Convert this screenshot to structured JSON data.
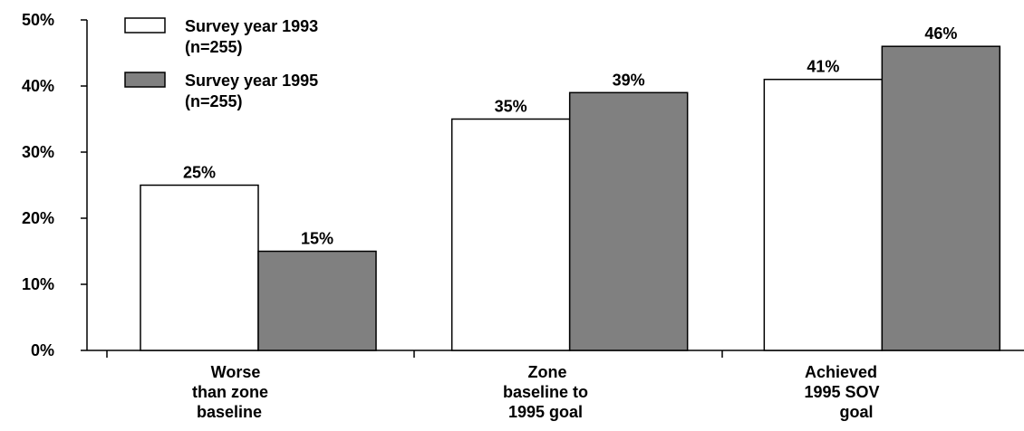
{
  "chart_data": {
    "type": "bar",
    "title": "",
    "xlabel": "",
    "ylabel": "",
    "ylim": [
      0,
      50
    ],
    "yticks": [
      0,
      10,
      20,
      30,
      40,
      50
    ],
    "ytick_labels": [
      "0%",
      "10%",
      "20%",
      "30%",
      "40%",
      "50%"
    ],
    "grid": false,
    "legend_position": "top-left",
    "categories": [
      [
        "Worse",
        "than zone",
        "baseline"
      ],
      [
        "Zone",
        "baseline to",
        "1995 goal"
      ],
      [
        "Achieved",
        "1995 SOV",
        "goal"
      ]
    ],
    "series": [
      {
        "name": "Survey year 1993",
        "legend_lines": [
          "Survey year 1993",
          "(n=255)"
        ],
        "color": "#ffffff",
        "values": [
          25,
          35,
          41
        ],
        "labels": [
          "25%",
          "35%",
          "41%"
        ]
      },
      {
        "name": "Survey year 1995",
        "legend_lines": [
          "Survey year 1995",
          "(n=255)"
        ],
        "color": "#808080",
        "values": [
          15,
          39,
          46
        ],
        "labels": [
          "15%",
          "39%",
          "46%"
        ]
      }
    ]
  }
}
